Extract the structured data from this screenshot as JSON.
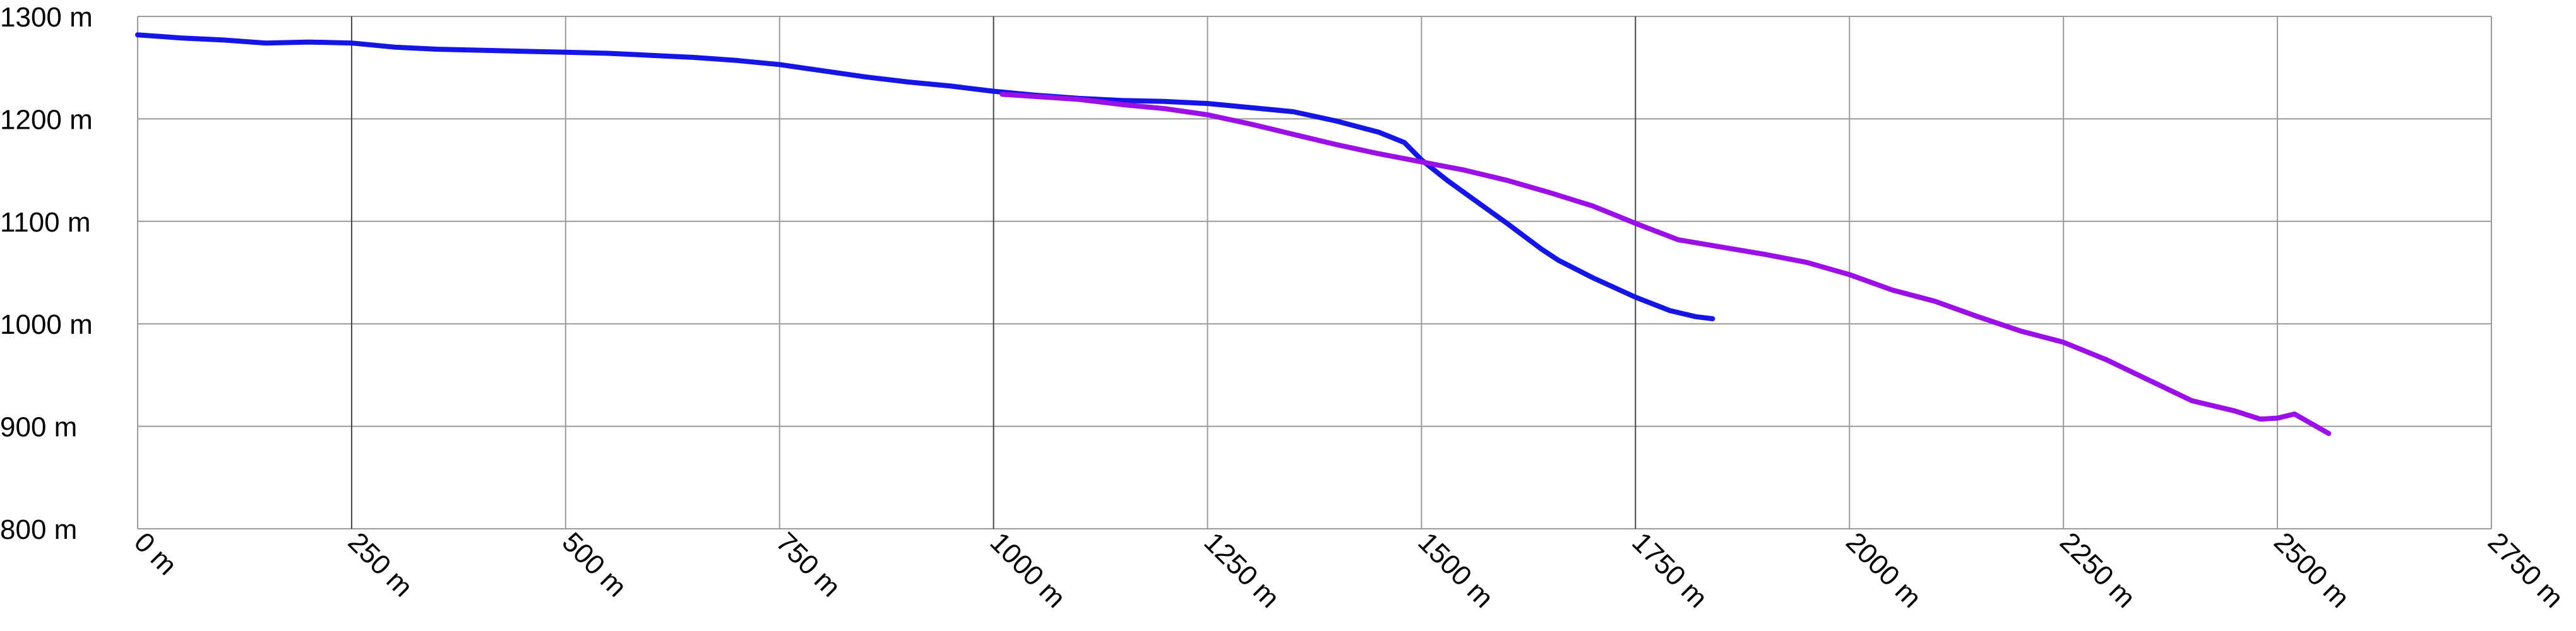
{
  "chart_data": {
    "type": "line",
    "xlabel": "",
    "ylabel": "",
    "xlim": [
      0,
      2750
    ],
    "ylim": [
      800,
      1300
    ],
    "x_ticks": [
      0,
      250,
      500,
      750,
      1000,
      1250,
      1500,
      1750,
      2000,
      2250,
      2500,
      2750
    ],
    "y_ticks": [
      800,
      900,
      1000,
      1100,
      1200,
      1300
    ],
    "x_tick_labels": [
      "0 m",
      "250 m",
      "500 m",
      "750 m",
      "1000 m",
      "1250 m",
      "1500 m",
      "1750 m",
      "2000 m",
      "2250 m",
      "2500 m",
      "2750 m"
    ],
    "y_tick_labels": [
      "800 m",
      "900 m",
      "1000 m",
      "1100 m",
      "1200 m",
      "1300 m"
    ],
    "grid": true,
    "legend": "none",
    "series": [
      {
        "color": "#1515e6",
        "x": [
          0,
          50,
          100,
          150,
          200,
          250,
          300,
          350,
          400,
          450,
          500,
          550,
          600,
          650,
          700,
          750,
          800,
          850,
          900,
          950,
          1000,
          1050,
          1100,
          1150,
          1200,
          1250,
          1300,
          1350,
          1400,
          1450,
          1480,
          1500,
          1530,
          1560,
          1600,
          1640,
          1660,
          1700,
          1750,
          1790,
          1820,
          1840
        ],
        "y": [
          1282,
          1279,
          1277,
          1274,
          1275,
          1274,
          1270,
          1268,
          1267,
          1266,
          1265,
          1264,
          1262,
          1260,
          1257,
          1253,
          1247,
          1241,
          1236,
          1232,
          1227,
          1223,
          1220,
          1218,
          1217,
          1215,
          1211,
          1207,
          1198,
          1187,
          1177,
          1160,
          1140,
          1122,
          1098,
          1073,
          1062,
          1045,
          1026,
          1013,
          1007,
          1005
        ]
      },
      {
        "color": "#9a10e6",
        "x": [
          1010,
          1100,
          1150,
          1200,
          1250,
          1300,
          1350,
          1400,
          1450,
          1500,
          1550,
          1600,
          1650,
          1700,
          1750,
          1800,
          1850,
          1900,
          1950,
          2000,
          2050,
          2100,
          2150,
          2200,
          2250,
          2300,
          2350,
          2400,
          2450,
          2480,
          2500,
          2520,
          2560
        ],
        "y": [
          1224,
          1219,
          1214,
          1210,
          1204,
          1195,
          1185,
          1175,
          1166,
          1158,
          1150,
          1140,
          1128,
          1115,
          1098,
          1082,
          1075,
          1068,
          1060,
          1048,
          1033,
          1022,
          1007,
          993,
          982,
          965,
          945,
          925,
          915,
          907,
          908,
          912,
          893
        ]
      }
    ]
  }
}
